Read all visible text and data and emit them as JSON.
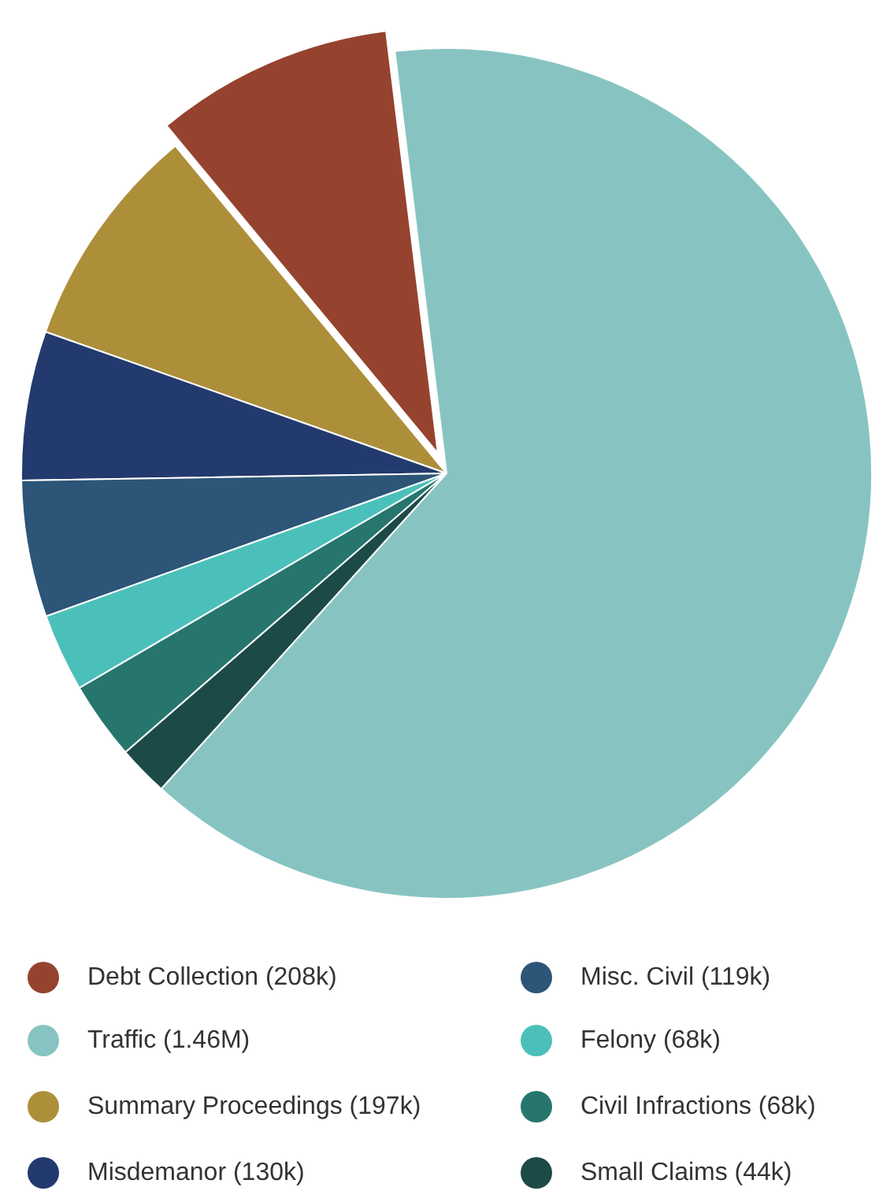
{
  "chart_data": {
    "type": "pie",
    "categories": [
      "Debt Collection (208k)",
      "Summary Proceedings (197k)",
      "Misdemanor (130k)",
      "Misc. Civil (119k)",
      "Felony (68k)",
      "Civil Infractions (68k)",
      "Small Claims (44k)",
      "Traffic (1.46M)"
    ],
    "values": [
      208,
      197,
      130,
      119,
      68,
      68,
      44,
      1460
    ],
    "colors": [
      "#95432f",
      "#ad8f3a",
      "#233a6e",
      "#2c5578",
      "#4bc0bb",
      "#26766e",
      "#1c4a47",
      "#87c4c1"
    ],
    "legend": "bottom"
  }
}
